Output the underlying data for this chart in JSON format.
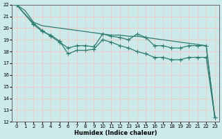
{
  "title": "",
  "xlabel": "Humidex (Indice chaleur)",
  "ylabel": "",
  "bg_color": "#cceaea",
  "grid_color": "#f0c8c8",
  "line_color": "#2e7d6e",
  "xlim": [
    -0.5,
    23.5
  ],
  "ylim": [
    12,
    22
  ],
  "xticks": [
    0,
    1,
    2,
    3,
    4,
    5,
    6,
    7,
    8,
    9,
    10,
    11,
    12,
    13,
    14,
    15,
    16,
    17,
    18,
    19,
    20,
    21,
    22,
    23
  ],
  "yticks": [
    12,
    13,
    14,
    15,
    16,
    17,
    18,
    19,
    20,
    21,
    22
  ],
  "line1_x": [
    0,
    1,
    2,
    3,
    4,
    5,
    6,
    7,
    8,
    9,
    10,
    11,
    12,
    13,
    14,
    15,
    16,
    17,
    18,
    19,
    20,
    21,
    22,
    23
  ],
  "line1_y": [
    22,
    21.5,
    20.5,
    20.2,
    20.1,
    20.0,
    19.9,
    19.8,
    19.7,
    19.6,
    19.5,
    19.4,
    19.4,
    19.3,
    19.3,
    19.2,
    19.1,
    19.0,
    18.9,
    18.8,
    18.7,
    18.6,
    18.5,
    12.4
  ],
  "line2_x": [
    0,
    2,
    3,
    4,
    5,
    6,
    7,
    8,
    9,
    10,
    11,
    12,
    13,
    14,
    15,
    16,
    17,
    18,
    19,
    20,
    21,
    22,
    23
  ],
  "line2_y": [
    22,
    20.4,
    19.8,
    19.3,
    18.8,
    18.3,
    18.5,
    18.5,
    18.4,
    19.5,
    19.3,
    19.2,
    19.0,
    19.5,
    19.2,
    18.5,
    18.5,
    18.3,
    18.3,
    18.5,
    18.5,
    18.5,
    12.4
  ],
  "line3_x": [
    0,
    2,
    3,
    4,
    5,
    6,
    7,
    8,
    9,
    10,
    11,
    12,
    13,
    14,
    15,
    16,
    17,
    18,
    19,
    20,
    21,
    22,
    23
  ],
  "line3_y": [
    22,
    20.3,
    19.7,
    19.4,
    18.9,
    17.8,
    18.1,
    18.1,
    18.2,
    19.0,
    18.8,
    18.5,
    18.3,
    18.0,
    17.8,
    17.5,
    17.5,
    17.3,
    17.3,
    17.5,
    17.5,
    17.5,
    12.4
  ]
}
